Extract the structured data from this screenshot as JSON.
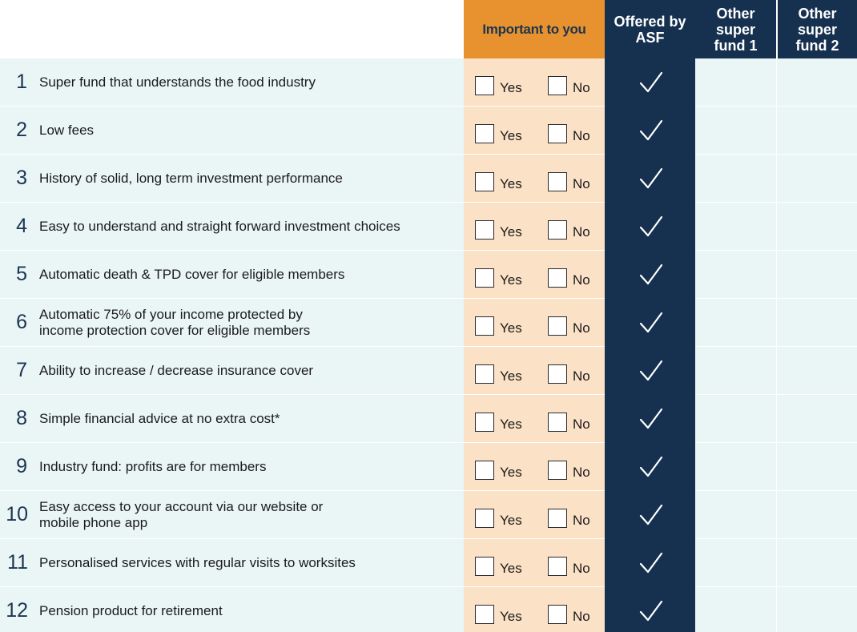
{
  "header": {
    "important": "Important to you",
    "asf": "Offered by\nASF",
    "other1": "Other\nsuper\nfund 1",
    "other2": "Other\nsuper\nfund 2"
  },
  "options": {
    "yes": "Yes",
    "no": "No"
  },
  "rows": [
    {
      "num": "1",
      "label": "Super fund that understands the food industry"
    },
    {
      "num": "2",
      "label": "Low fees"
    },
    {
      "num": "3",
      "label": "History of solid, long term investment performance"
    },
    {
      "num": "4",
      "label": "Easy to understand and straight forward investment choices"
    },
    {
      "num": "5",
      "label": "Automatic death & TPD cover for eligible members"
    },
    {
      "num": "6",
      "label": "Automatic 75% of your income protected by\nincome protection cover for eligible members"
    },
    {
      "num": "7",
      "label": "Ability to increase / decrease insurance cover"
    },
    {
      "num": "8",
      "label": "Simple financial advice at no extra cost*"
    },
    {
      "num": "9",
      "label": "Industry fund: profits are for members"
    },
    {
      "num": "10",
      "label": "Easy access to your account via our website or\nmobile phone app"
    },
    {
      "num": "11",
      "label": "Personalised services with regular visits to worksites"
    },
    {
      "num": "12",
      "label": "Pension product for retirement"
    }
  ],
  "colors": {
    "orange": "#e8922f",
    "navy": "#16304f",
    "light_orange": "#fbe1c6",
    "light_blue": "#eaf5f6"
  },
  "icons": {
    "asf_offered": "checkmark-icon"
  }
}
